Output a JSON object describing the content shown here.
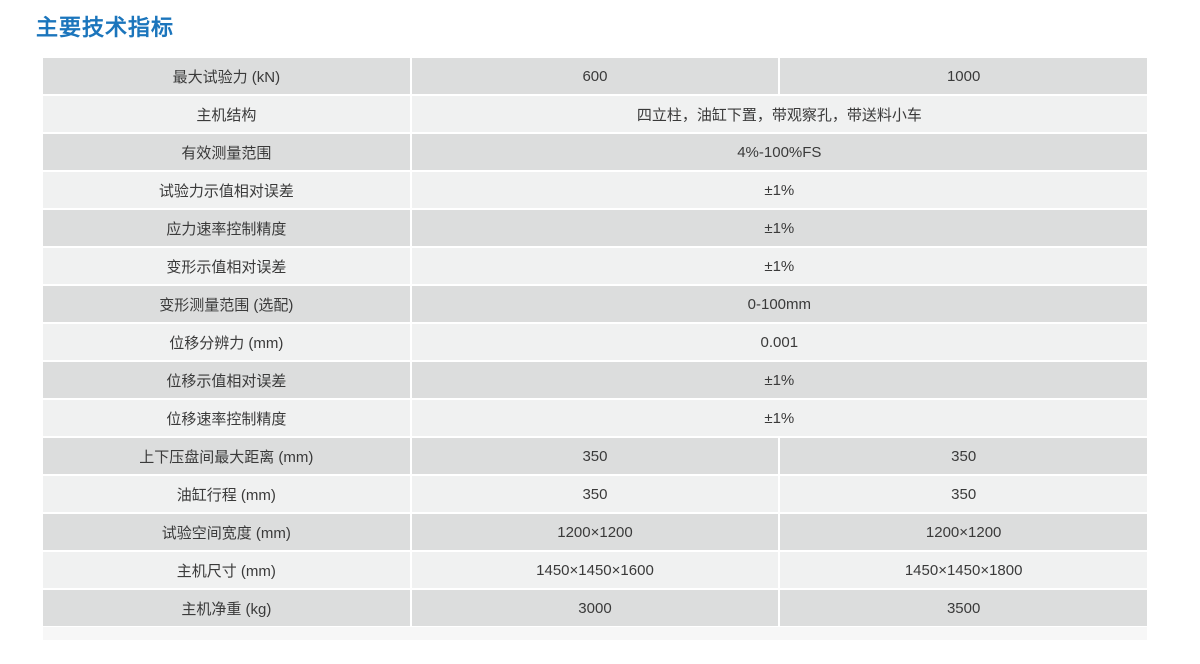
{
  "page_title": "主要技术指标",
  "colors": {
    "title": "#1b75bc",
    "row_dark": "#dcdddd",
    "row_light": "#f0f1f1",
    "cell_text": "#3a3a3a"
  },
  "table": {
    "columns": 3,
    "rows": [
      {
        "label": "最大试验力 (kN)",
        "values": [
          "600",
          "1000"
        ]
      },
      {
        "label": "主机结构",
        "values": [
          "四立柱，油缸下置，带观察孔，带送料小车"
        ]
      },
      {
        "label": "有效测量范围",
        "values": [
          "4%-100%FS"
        ]
      },
      {
        "label": "试验力示值相对误差",
        "values": [
          "±1%"
        ]
      },
      {
        "label": "应力速率控制精度",
        "values": [
          "±1%"
        ]
      },
      {
        "label": "变形示值相对误差",
        "values": [
          "±1%"
        ]
      },
      {
        "label": "变形测量范围 (选配)",
        "values": [
          "0-100mm"
        ]
      },
      {
        "label": "位移分辨力 (mm)",
        "values": [
          "0.001"
        ]
      },
      {
        "label": "位移示值相对误差",
        "values": [
          "±1%"
        ]
      },
      {
        "label": "位移速率控制精度",
        "values": [
          "±1%"
        ]
      },
      {
        "label": "上下压盘间最大距离 (mm)",
        "values": [
          "350",
          "350"
        ]
      },
      {
        "label": "油缸行程 (mm)",
        "values": [
          "350",
          "350"
        ]
      },
      {
        "label": "试验空间宽度 (mm)",
        "values": [
          "1200×1200",
          "1200×1200"
        ]
      },
      {
        "label": "主机尺寸 (mm)",
        "values": [
          "1450×1450×1600",
          "1450×1450×1800"
        ]
      },
      {
        "label": "主机净重 (kg)",
        "values": [
          "3000",
          "3500"
        ]
      }
    ]
  }
}
